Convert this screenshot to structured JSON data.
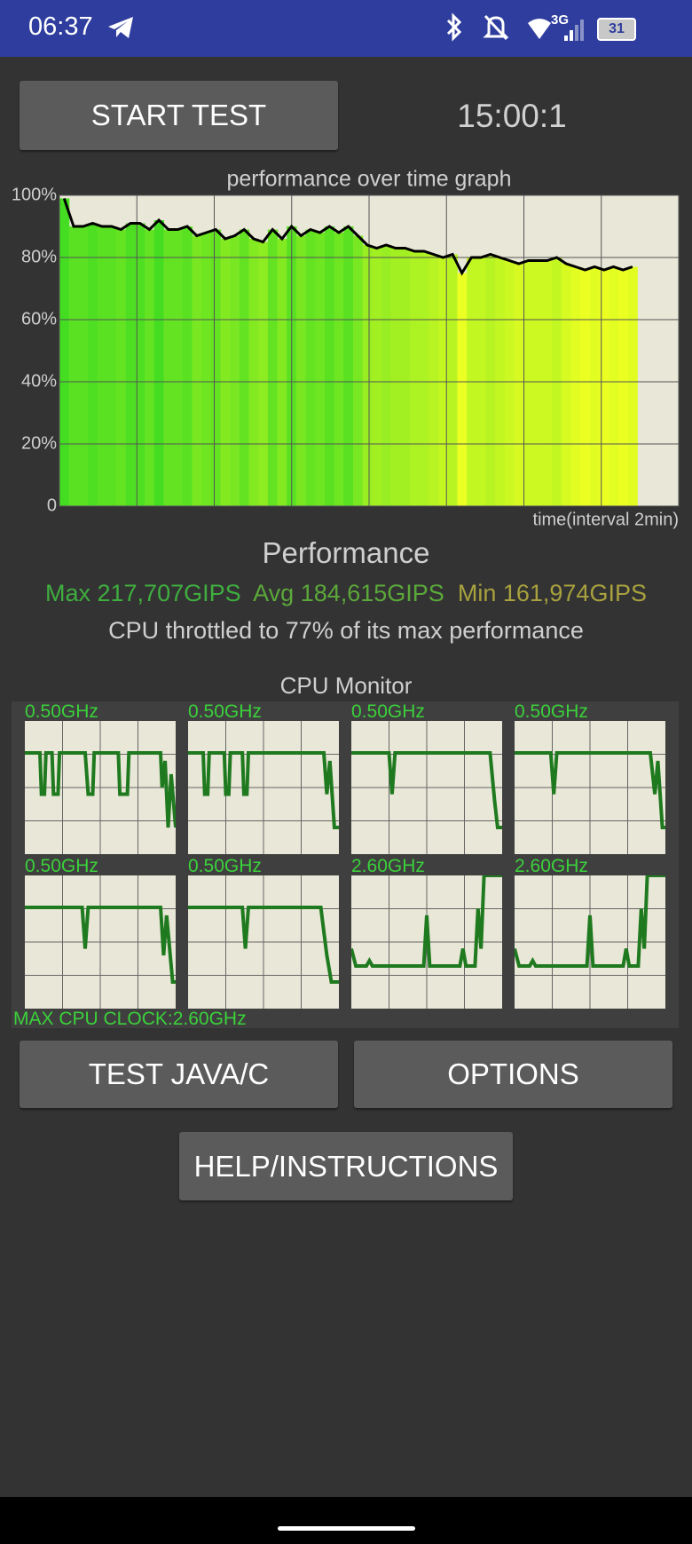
{
  "status_bar": {
    "time": "06:37",
    "network": "3G",
    "battery": "31"
  },
  "start_button": "START TEST",
  "timer": "15:00:1",
  "performance_graph": {
    "type": "line",
    "title": "performance over time graph",
    "x_label": "time(interval 2min)",
    "ylim": [
      0,
      100
    ],
    "yticks": [
      {
        "value": 100,
        "label": "100%"
      },
      {
        "value": 80,
        "label": "80%"
      },
      {
        "value": 60,
        "label": "60%"
      },
      {
        "value": 40,
        "label": "40%"
      },
      {
        "value": 20,
        "label": "20%"
      },
      0
    ],
    "values": [
      99,
      90,
      90,
      91,
      90,
      90,
      89,
      91,
      91,
      89,
      92,
      89,
      89,
      90,
      87,
      88,
      89,
      86,
      87,
      89,
      86,
      85,
      89,
      86,
      90,
      87,
      89,
      88,
      90,
      88,
      90,
      87,
      84,
      83,
      84,
      83,
      83,
      82,
      82,
      81,
      80,
      81,
      75,
      80,
      80,
      81,
      80,
      79,
      78,
      79,
      79,
      79,
      80,
      78,
      77,
      76,
      77,
      76,
      77,
      76,
      77
    ]
  },
  "performance": {
    "heading": "Performance",
    "max": "Max 217,707GIPS",
    "avg": "Avg 184,615GIPS",
    "min": "Min 161,974GIPS",
    "throttle": "CPU throttled to 77% of its max performance"
  },
  "cpu_monitor": {
    "title": "CPU Monitor",
    "cores": [
      "0.50GHz",
      "0.50GHz",
      "0.50GHz",
      "0.50GHz",
      "0.50GHz",
      "0.50GHz",
      "2.60GHz",
      "2.60GHz"
    ],
    "max_clock": "MAX CPU CLOCK:2.60GHz"
  },
  "buttons": {
    "test": "TEST JAVA/C",
    "options": "OPTIONS",
    "help": "HELP/INSTRUCTIONS"
  }
}
